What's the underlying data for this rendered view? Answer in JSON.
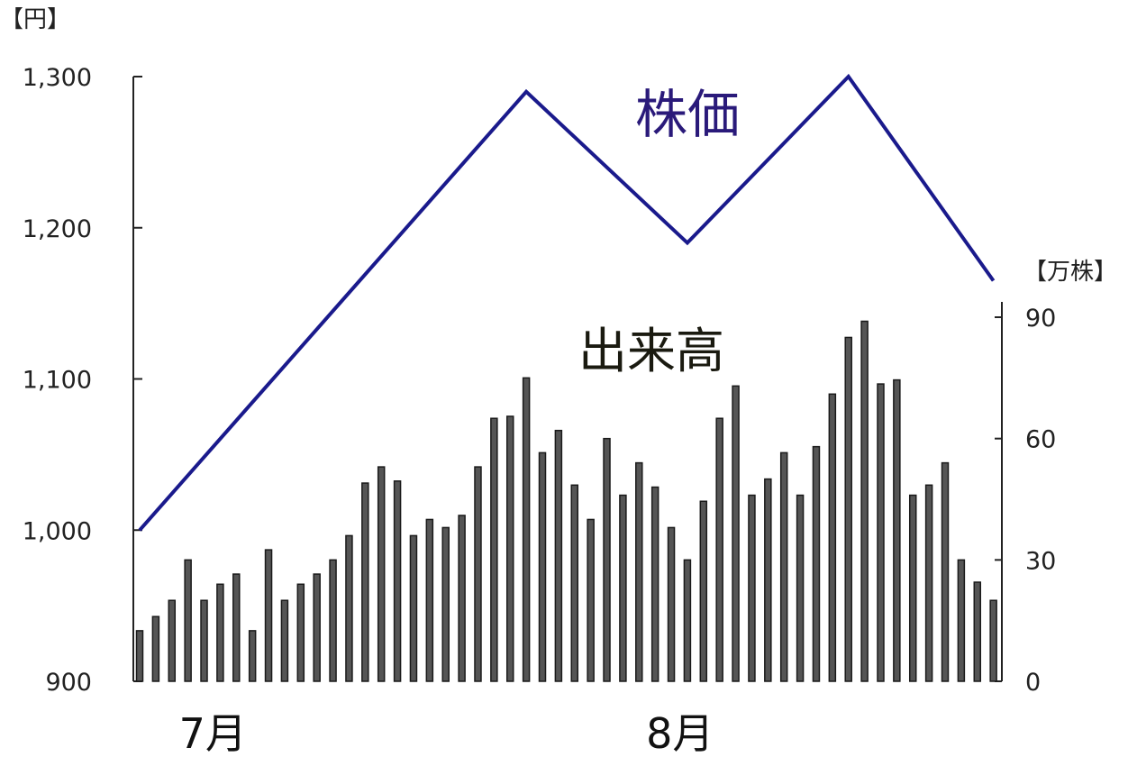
{
  "chart_data": {
    "type": "line+bar",
    "left_unit": "【円】",
    "right_unit": "【万株】",
    "left_axis": {
      "ylim": [
        900,
        1300
      ],
      "ticks": [
        "900",
        "1,000",
        "1,100",
        "1,200",
        "1,300"
      ],
      "tick_values": [
        900,
        1000,
        1100,
        1200,
        1300
      ]
    },
    "right_axis": {
      "ylim": [
        0,
        90
      ],
      "ticks": [
        "0",
        "30",
        "60",
        "90"
      ],
      "tick_values": [
        0,
        30,
        60,
        90
      ]
    },
    "x_labels": [
      {
        "label": "7月",
        "index": 3
      },
      {
        "label": "8月",
        "index": 32
      }
    ],
    "price_series": {
      "label": "株価",
      "color": "#1a1a8c",
      "points": [
        {
          "i": 0,
          "v": 1000
        },
        {
          "i": 24,
          "v": 1290
        },
        {
          "i": 34,
          "v": 1190
        },
        {
          "i": 44,
          "v": 1300
        },
        {
          "i": 53,
          "v": 1165
        }
      ]
    },
    "volume_series": {
      "label": "出来高",
      "color": "#333333",
      "values": [
        12.5,
        16,
        20,
        30,
        20,
        24,
        26.5,
        12.5,
        32.5,
        20,
        24,
        26.5,
        30,
        36,
        49,
        53,
        49.5,
        36,
        40,
        38,
        41,
        53,
        65,
        65.5,
        75,
        56.5,
        62,
        48.5,
        40,
        60,
        46,
        54,
        48,
        38,
        30,
        44.5,
        65,
        73,
        46,
        50,
        56.5,
        46,
        58,
        71,
        85,
        89,
        73.5,
        74.5,
        46,
        48.5,
        54,
        30,
        24.5,
        20
      ]
    },
    "grid": false
  }
}
